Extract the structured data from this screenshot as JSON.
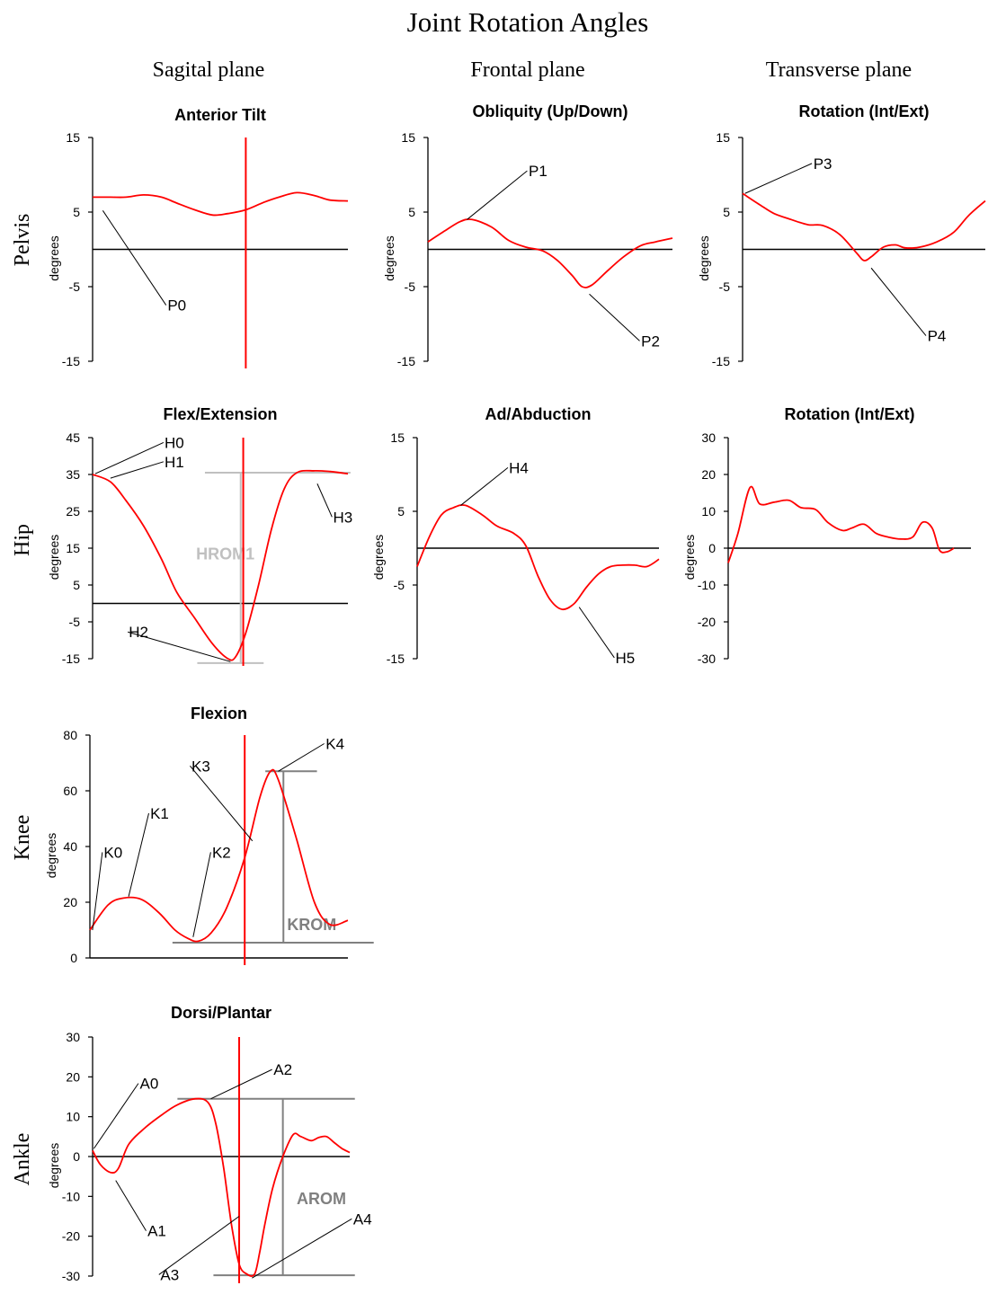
{
  "title": "Joint Rotation Angles",
  "columns": [
    "Sagital plane",
    "Frontal plane",
    "Transverse plane"
  ],
  "rows": [
    "Pelvis",
    "Hip",
    "Knee",
    "Ankle"
  ],
  "y_label": "degrees",
  "colors": {
    "curve": "#ff0000",
    "axis": "#000000",
    "range_light": "#c0c0c0",
    "range_dark": "#808080",
    "background": "#ffffff"
  },
  "chart_data": [
    {
      "id": "pelvis-anterior-tilt",
      "type": "line",
      "title": "Anterior Tilt",
      "row": "Pelvis",
      "plane": "Sagital plane",
      "ylim": [
        -15,
        15
      ],
      "yticks": [
        15,
        5,
        -5,
        -15
      ],
      "xlim": [
        0,
        100
      ],
      "event_line_x": 60,
      "zero_line": true,
      "series": [
        {
          "name": "angle",
          "x": [
            0,
            7,
            13,
            20,
            27,
            33,
            40,
            47,
            53,
            60,
            67,
            73,
            80,
            87,
            93,
            100
          ],
          "y": [
            7,
            7,
            7,
            7.3,
            7,
            6.2,
            5.3,
            4.6,
            4.8,
            5.3,
            6.3,
            7,
            7.6,
            7.2,
            6.6,
            6.5
          ]
        }
      ],
      "annotations": [
        {
          "label": "P0",
          "point": [
            4,
            5.2
          ],
          "text_at": [
            33,
            -8.2
          ]
        }
      ]
    },
    {
      "id": "pelvis-obliquity",
      "type": "line",
      "title": "Obliquity (Up/Down)",
      "row": "Pelvis",
      "plane": "Frontal plane",
      "ylim": [
        -15,
        15
      ],
      "yticks": [
        15,
        5,
        -5,
        -15
      ],
      "xlim": [
        0,
        100
      ],
      "zero_line": true,
      "series": [
        {
          "name": "angle",
          "x": [
            0,
            7,
            13,
            18,
            26,
            33,
            40,
            47,
            53,
            59,
            63,
            67,
            73,
            80,
            87,
            93,
            100
          ],
          "y": [
            1,
            2.5,
            3.7,
            4,
            3,
            1.2,
            0.3,
            -0.2,
            -1.5,
            -3.5,
            -5,
            -4.8,
            -3,
            -1,
            0.5,
            1,
            1.5
          ]
        }
      ],
      "annotations": [
        {
          "label": "P1",
          "point": [
            16,
            4
          ],
          "text_at": [
            45,
            9.8
          ]
        },
        {
          "label": "P2",
          "point": [
            66,
            -6
          ],
          "text_at": [
            91,
            -13
          ]
        }
      ]
    },
    {
      "id": "pelvis-rotation",
      "type": "line",
      "title": "Rotation (Int/Ext)",
      "row": "Pelvis",
      "plane": "Transverse plane",
      "ylim": [
        -15,
        15
      ],
      "yticks": [
        15,
        5,
        -5,
        -15
      ],
      "xlim": [
        0,
        100
      ],
      "zero_line": true,
      "series": [
        {
          "name": "angle",
          "x": [
            0,
            7,
            13,
            20,
            27,
            33,
            40,
            47,
            50,
            53,
            58,
            63,
            67,
            73,
            80,
            87,
            93,
            100
          ],
          "y": [
            7.5,
            6,
            4.8,
            4,
            3.3,
            3.2,
            2,
            -0.5,
            -1.5,
            -1,
            0.3,
            0.6,
            0.2,
            0.3,
            1,
            2.3,
            4.5,
            6.5
          ]
        }
      ],
      "annotations": [
        {
          "label": "P3",
          "point": [
            1,
            7.5
          ],
          "text_at": [
            33,
            10.8
          ]
        },
        {
          "label": "P4",
          "point": [
            53,
            -2.5
          ],
          "text_at": [
            80,
            -12.3
          ]
        }
      ]
    },
    {
      "id": "hip-flex-extension",
      "type": "line",
      "title": "Flex/Extension",
      "row": "Hip",
      "plane": "Sagital plane",
      "ylim": [
        -15,
        45
      ],
      "yticks": [
        45,
        35,
        25,
        15,
        5,
        -5,
        -15
      ],
      "xlim": [
        0,
        100
      ],
      "event_line_x": 59,
      "zero_line": true,
      "series": [
        {
          "name": "angle",
          "x": [
            0,
            7,
            13,
            20,
            27,
            33,
            40,
            47,
            53,
            56,
            60,
            65,
            70,
            75,
            80,
            87,
            93,
            100
          ],
          "y": [
            35,
            33,
            28,
            21,
            12,
            3,
            -4,
            -11,
            -15,
            -14.5,
            -8,
            5,
            20,
            31,
            35.5,
            36,
            35.8,
            35.2
          ]
        }
      ],
      "ranges": [
        {
          "label": "HROM1",
          "top": 35.5,
          "bottom": -16.2,
          "shade": "range_light"
        }
      ],
      "annotations": [
        {
          "label": "H0",
          "point": [
            1,
            35.2
          ],
          "text_at": [
            32,
            42.2
          ]
        },
        {
          "label": "H1",
          "point": [
            7,
            34
          ],
          "text_at": [
            32,
            37
          ]
        },
        {
          "label": "H2",
          "point": [
            54,
            -15.8
          ],
          "text_at": [
            18,
            -9.2
          ]
        },
        {
          "label": "H3",
          "point": [
            88,
            32.5
          ],
          "text_at": [
            98,
            22
          ]
        }
      ]
    },
    {
      "id": "hip-ad-abduction",
      "type": "line",
      "title": "Ad/Abduction",
      "row": "Hip",
      "plane": "Frontal plane",
      "ylim": [
        -15,
        15
      ],
      "yticks": [
        15,
        5,
        -5,
        -15
      ],
      "xlim": [
        0,
        100
      ],
      "zero_line": true,
      "series": [
        {
          "name": "angle",
          "x": [
            0,
            5,
            10,
            15,
            20,
            27,
            33,
            40,
            45,
            50,
            55,
            60,
            65,
            70,
            75,
            80,
            85,
            90,
            95,
            100
          ],
          "y": [
            -2.5,
            1.5,
            4.5,
            5.5,
            5.8,
            4.5,
            3,
            2,
            0.3,
            -3.8,
            -7,
            -8.3,
            -7.5,
            -5.3,
            -3.5,
            -2.5,
            -2.3,
            -2.3,
            -2.5,
            -1.5
          ]
        }
      ],
      "annotations": [
        {
          "label": "H4",
          "point": [
            18,
            5.8
          ],
          "text_at": [
            42,
            10.2
          ]
        },
        {
          "label": "H5",
          "point": [
            67,
            -8
          ],
          "text_at": [
            86,
            -15.6
          ]
        }
      ]
    },
    {
      "id": "hip-rotation",
      "type": "line",
      "title": "Rotation (Int/Ext)",
      "row": "Hip",
      "plane": "Transverse plane",
      "ylim": [
        -30,
        30
      ],
      "yticks": [
        30,
        20,
        10,
        0,
        -10,
        -20,
        -30
      ],
      "xlim": [
        0,
        100
      ],
      "zero_line": true,
      "series": [
        {
          "name": "angle",
          "x": [
            0,
            4,
            9,
            13,
            19,
            25,
            30,
            36,
            41,
            47,
            51,
            56,
            61,
            66,
            71,
            76,
            80,
            84,
            87,
            90,
            93
          ],
          "y": [
            -4,
            4,
            16.5,
            12,
            12.5,
            13,
            11,
            10.5,
            7,
            4.8,
            5.5,
            6.5,
            4,
            3,
            2.5,
            3,
            7,
            5.5,
            -0.5,
            -1,
            0
          ]
        }
      ],
      "annotations": []
    },
    {
      "id": "knee-flexion",
      "type": "line",
      "title": "Flexion",
      "row": "Knee",
      "plane": "Sagital plane",
      "ylim": [
        0,
        80
      ],
      "yticks": [
        80,
        60,
        40,
        20,
        0
      ],
      "xlim": [
        0,
        100
      ],
      "event_line_x": 60,
      "zero_line": false,
      "series": [
        {
          "name": "angle",
          "x": [
            0,
            7,
            13,
            20,
            27,
            33,
            38,
            42,
            47,
            53,
            60,
            66,
            70,
            73,
            80,
            87,
            93,
            100
          ],
          "y": [
            10,
            19,
            21.5,
            21,
            16,
            10,
            7,
            6,
            9,
            18,
            36,
            58,
            67,
            64,
            43,
            20,
            12,
            13.5
          ]
        }
      ],
      "ranges": [
        {
          "label": "KROM",
          "top": 67,
          "bottom": 5.5,
          "shade": "range_dark"
        }
      ],
      "annotations": [
        {
          "label": "K0",
          "point": [
            1,
            10
          ],
          "text_at": [
            9,
            36
          ]
        },
        {
          "label": "K1",
          "point": [
            15,
            22
          ],
          "text_at": [
            27,
            50
          ]
        },
        {
          "label": "K2",
          "point": [
            40,
            7.5
          ],
          "text_at": [
            51,
            36
          ]
        },
        {
          "label": "K3",
          "point": [
            63,
            42
          ],
          "text_at": [
            43,
            67
          ]
        },
        {
          "label": "K4",
          "point": [
            73,
            67
          ],
          "text_at": [
            95,
            75
          ]
        }
      ]
    },
    {
      "id": "ankle-dorsi-plantar",
      "type": "line",
      "title": "Dorsi/Plantar",
      "row": "Ankle",
      "plane": "Sagital plane",
      "ylim": [
        -30,
        30
      ],
      "yticks": [
        30,
        20,
        10,
        0,
        -10,
        -20,
        -30
      ],
      "xlim": [
        0,
        100
      ],
      "event_line_x": 57,
      "zero_line": true,
      "series": [
        {
          "name": "angle",
          "x": [
            0,
            3,
            7,
            10,
            14,
            20,
            27,
            33,
            40,
            45,
            48,
            51,
            54,
            57,
            60,
            63,
            65,
            67,
            70,
            74,
            78,
            81,
            85,
            88,
            91,
            94,
            97,
            100
          ],
          "y": [
            1.5,
            -2,
            -4,
            -3,
            3,
            7,
            10.5,
            13,
            14.5,
            13.5,
            8,
            -3,
            -17,
            -27,
            -29.5,
            -29.5,
            -24,
            -17,
            -8,
            0,
            5.5,
            5,
            4,
            4.8,
            5,
            3.5,
            2,
            1
          ]
        }
      ],
      "ranges": [
        {
          "label": "AROM",
          "top": 14.5,
          "bottom": -29.8,
          "shade": "range_dark"
        }
      ],
      "annotations": [
        {
          "label": "A0",
          "point": [
            0.5,
            2
          ],
          "text_at": [
            22,
            17
          ]
        },
        {
          "label": "A1",
          "point": [
            9,
            -6
          ],
          "text_at": [
            25,
            -20
          ]
        },
        {
          "label": "A2",
          "point": [
            46,
            14.5
          ],
          "text_at": [
            74,
            20.5
          ]
        },
        {
          "label": "A3",
          "point": [
            57,
            -15
          ],
          "text_at": [
            30,
            -31
          ]
        },
        {
          "label": "A4",
          "point": [
            62,
            -30.5
          ],
          "text_at": [
            105,
            -17
          ]
        }
      ]
    }
  ]
}
